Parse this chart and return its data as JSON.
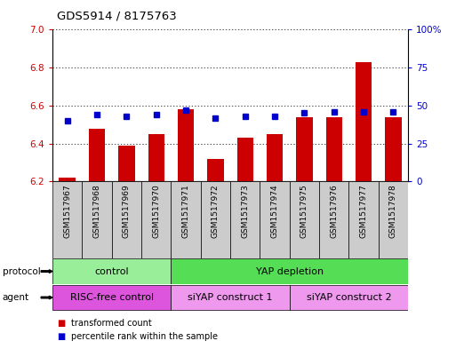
{
  "title": "GDS5914 / 8175763",
  "samples": [
    "GSM1517967",
    "GSM1517968",
    "GSM1517969",
    "GSM1517970",
    "GSM1517971",
    "GSM1517972",
    "GSM1517973",
    "GSM1517974",
    "GSM1517975",
    "GSM1517976",
    "GSM1517977",
    "GSM1517978"
  ],
  "transformed_count": [
    6.22,
    6.48,
    6.39,
    6.45,
    6.58,
    6.32,
    6.43,
    6.45,
    6.54,
    6.54,
    6.83,
    6.54
  ],
  "percentile_rank": [
    40,
    44,
    43,
    44,
    47,
    42,
    43,
    43,
    45,
    46,
    46,
    46
  ],
  "ylim_left": [
    6.2,
    7.0
  ],
  "ylim_right": [
    0,
    100
  ],
  "yticks_left": [
    6.2,
    6.4,
    6.6,
    6.8,
    7.0
  ],
  "yticks_right": [
    0,
    25,
    50,
    75,
    100
  ],
  "bar_color": "#cc0000",
  "dot_color": "#0000cc",
  "bar_bottom": 6.2,
  "protocol_labels": [
    "control",
    "YAP depletion"
  ],
  "protocol_color_control": "#99ee99",
  "protocol_color_yap": "#55dd55",
  "agent_labels": [
    "RISC-free control",
    "siYAP construct 1",
    "siYAP construct 2"
  ],
  "agent_color_risc": "#dd55dd",
  "agent_color_siyap": "#ee99ee",
  "legend_red": "transformed count",
  "legend_blue": "percentile rank within the sample",
  "xlabel_protocol": "protocol",
  "xlabel_agent": "agent",
  "xtick_bg": "#cccccc",
  "fig_bg": "#ffffff"
}
